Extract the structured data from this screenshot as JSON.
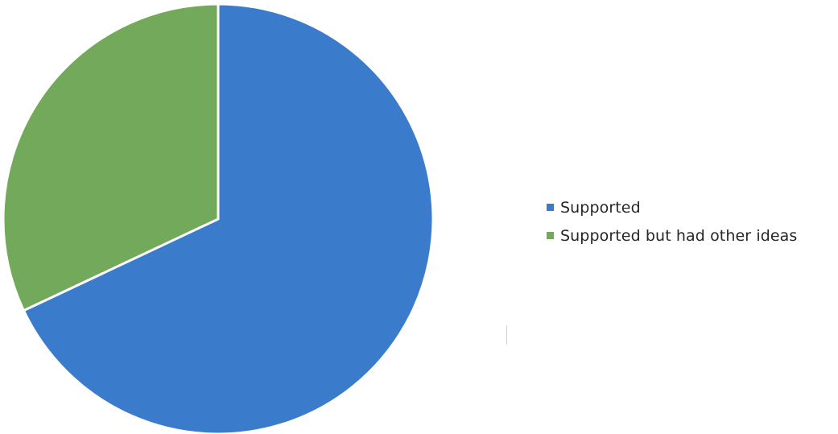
{
  "chart_data": {
    "type": "pie",
    "title": "",
    "start_angle_deg": 0,
    "direction": "clockwise",
    "series": [
      {
        "values": [
          68,
          32
        ],
        "categories": [
          "Supported",
          "Supported but had other ideas"
        ]
      }
    ],
    "slices": [
      {
        "label": "Supported",
        "value": 68,
        "color": "#3A7BCB"
      },
      {
        "label": "Supported but had other ideas",
        "value": 32,
        "color": "#72A95A"
      }
    ],
    "legend": {
      "position": "right",
      "items": [
        {
          "label": "Supported",
          "color": "#3A7BCB"
        },
        {
          "label": "Supported but had other ideas",
          "color": "#72A95A"
        }
      ]
    }
  }
}
